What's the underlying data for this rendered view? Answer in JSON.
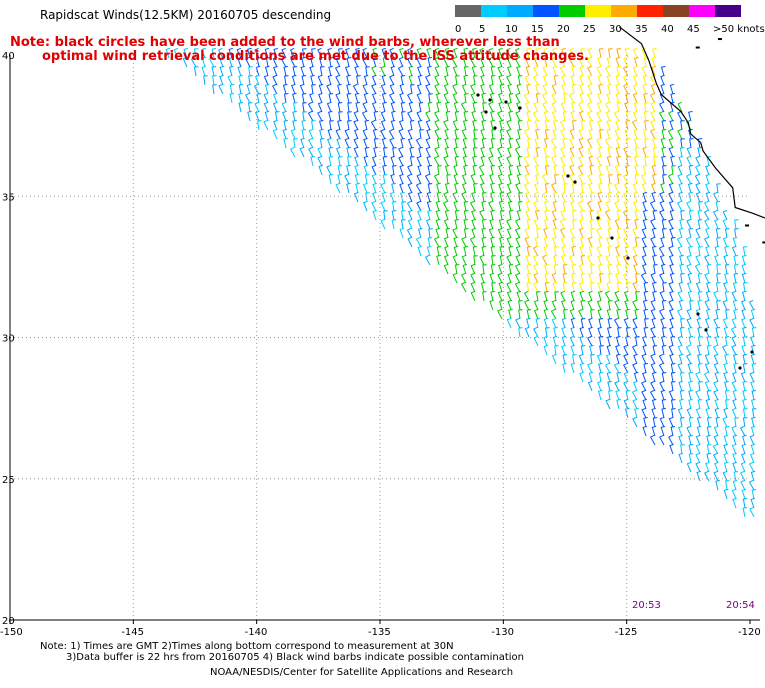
{
  "title": "Rapidscat Winds(12.5KM) 20160705 descending",
  "note_line1": "Note: black circles have been added to the wind barbs, wherever less than",
  "note_line2": "optimal wind retrieval conditions are met due to the ISS attitude changes.",
  "legend": {
    "labels": [
      "0",
      "5",
      "10",
      "15",
      "20",
      "25",
      "30",
      "35",
      "40",
      "45",
      ">50 knots"
    ],
    "colors": [
      "#666666",
      "#00ccff",
      "#00aaff",
      "#0055ff",
      "#00cc00",
      "#ffee00",
      "#ffaa00",
      "#ff2200",
      "#884422",
      "#ff00ff",
      "#440088"
    ]
  },
  "map": {
    "lon_labels": [
      "-150",
      "-145",
      "-140",
      "-135",
      "-130",
      "-125",
      "-120"
    ],
    "lat_labels": [
      "40",
      "35",
      "30",
      "25",
      "20"
    ],
    "lon_range": [
      -150,
      -120
    ],
    "lat_range": [
      20,
      41
    ],
    "grid": true
  },
  "times": [
    "20:53",
    "20:54"
  ],
  "footnote_line1": "Note: 1) Times are GMT 2)Times along bottom correspond to measurement at 30N",
  "footnote_line2": "3)Data buffer is 22 hrs from 20160705 4) Black wind barbs indicate possible contamination",
  "credit": "NOAA/NESDIS/Center for Satellite Applications and Research"
}
